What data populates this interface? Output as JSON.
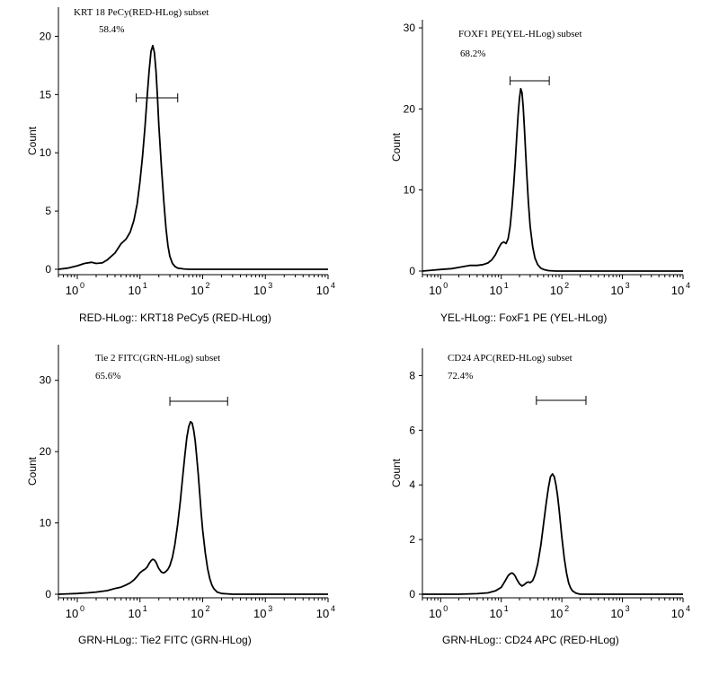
{
  "chart_data": [
    {
      "type": "line",
      "title": "KRT 18 PeCy(RED-HLog) subset",
      "gate_percent": "58.4%",
      "gate_range": [
        8.7,
        40
      ],
      "xlabel": "RED-HLog:: KRT18 PeCy5 (RED-HLog)",
      "ylabel": "Count",
      "xscale": "log",
      "xlim": [
        0.5,
        10000
      ],
      "ylim": [
        0,
        22.5
      ],
      "yticks": [
        0,
        5,
        10,
        15,
        20
      ],
      "xtick_bases": [
        "10",
        "10",
        "10",
        "10",
        "10"
      ],
      "xtick_exps": [
        "0",
        "1",
        "2",
        "3",
        "4"
      ],
      "series": [
        {
          "x": [
            0.5,
            0.7,
            1,
            1.3,
            1.7,
            2,
            2.5,
            3,
            4,
            5,
            6,
            7,
            8,
            9,
            10,
            11,
            12,
            13,
            14,
            15,
            16,
            17,
            18,
            19,
            20,
            22,
            24,
            26,
            28,
            30,
            33,
            36,
            40,
            50,
            60,
            80,
            100,
            1000,
            10000
          ],
          "y": [
            0,
            0.1,
            0.3,
            0.5,
            0.6,
            0.5,
            0.55,
            0.8,
            1.4,
            2.2,
            2.6,
            3.2,
            4.2,
            5.6,
            7.5,
            9.7,
            12.2,
            14.8,
            17.0,
            18.7,
            19.2,
            18.6,
            17.0,
            14.8,
            12.4,
            8.8,
            5.8,
            3.5,
            2.0,
            1.1,
            0.5,
            0.25,
            0.1,
            0.03,
            0,
            0,
            0,
            0,
            0
          ]
        }
      ]
    },
    {
      "type": "line",
      "title": "FOXF1 PE(YEL-HLog) subset",
      "gate_percent": "68.2%",
      "gate_range": [
        14,
        62
      ],
      "xlabel": "YEL-HLog:: FoxF1 PE (YEL-HLog)",
      "ylabel": "Count",
      "xscale": "log",
      "xlim": [
        0.5,
        10000
      ],
      "ylim": [
        0,
        31
      ],
      "yticks": [
        0,
        10,
        20,
        30
      ],
      "xtick_bases": [
        "10",
        "10",
        "10",
        "10",
        "10"
      ],
      "xtick_exps": [
        "0",
        "1",
        "2",
        "3",
        "4"
      ],
      "series": [
        {
          "x": [
            0.5,
            0.7,
            1,
            1.5,
            2,
            3,
            4,
            5,
            6,
            7,
            8,
            9,
            10,
            11,
            12,
            13,
            14,
            15,
            16,
            17,
            18,
            19,
            20,
            21,
            22,
            23,
            24,
            26,
            28,
            30,
            33,
            36,
            40,
            45,
            50,
            60,
            80,
            100,
            1000,
            10000
          ],
          "y": [
            0,
            0.1,
            0.2,
            0.3,
            0.45,
            0.7,
            0.7,
            0.8,
            1.0,
            1.4,
            2.0,
            2.8,
            3.4,
            3.6,
            3.4,
            4.0,
            5.5,
            7.8,
            10.5,
            13.5,
            16.5,
            19.3,
            21.3,
            22.5,
            22.0,
            20.3,
            17.8,
            12.8,
            8.5,
            5.5,
            3.0,
            1.6,
            0.8,
            0.35,
            0.2,
            0.05,
            0,
            0,
            0,
            0
          ]
        }
      ]
    },
    {
      "type": "line",
      "title": "Tie 2 FITC(GRN-HLog) subset",
      "gate_percent": "65.6%",
      "gate_range": [
        30,
        250
      ],
      "xlabel": "GRN-HLog:: Tie2 FITC (GRN-HLog)",
      "ylabel": "Count",
      "xscale": "log",
      "xlim": [
        0.5,
        10000
      ],
      "ylim": [
        0,
        35
      ],
      "yticks": [
        0,
        10,
        20,
        30
      ],
      "xtick_bases": [
        "10",
        "10",
        "10",
        "10",
        "10"
      ],
      "xtick_exps": [
        "0",
        "1",
        "2",
        "3",
        "4"
      ],
      "series": [
        {
          "x": [
            0.5,
            0.7,
            1,
            1.5,
            2,
            3,
            4,
            5,
            6,
            7,
            8,
            9,
            10,
            11,
            12,
            13,
            14,
            15,
            16,
            17,
            18,
            19,
            20,
            22,
            24,
            26,
            28,
            30,
            33,
            36,
            40,
            44,
            48,
            52,
            56,
            60,
            64,
            68,
            72,
            76,
            80,
            85,
            90,
            95,
            100,
            110,
            120,
            130,
            140,
            150,
            170,
            200,
            300,
            1000,
            10000
          ],
          "y": [
            0,
            0.05,
            0.1,
            0.2,
            0.3,
            0.5,
            0.8,
            1.0,
            1.3,
            1.6,
            2.0,
            2.5,
            3.0,
            3.3,
            3.5,
            3.8,
            4.3,
            4.7,
            4.9,
            4.8,
            4.5,
            4.0,
            3.6,
            3.1,
            3.0,
            3.2,
            3.5,
            4.0,
            5.2,
            7.0,
            9.8,
            13.0,
            16.5,
            19.5,
            22.0,
            23.5,
            24.2,
            24.0,
            23.0,
            21.5,
            19.5,
            16.8,
            14.0,
            11.3,
            9.0,
            5.8,
            3.6,
            2.2,
            1.3,
            0.8,
            0.3,
            0.1,
            0,
            0,
            0
          ]
        }
      ]
    },
    {
      "type": "line",
      "title": "CD24 APC(RED-HLog) subset",
      "gate_percent": "72.4%",
      "gate_range": [
        38,
        250
      ],
      "xlabel": "GRN-HLog:: CD24 APC (RED-HLog)",
      "ylabel": "Count",
      "xscale": "log",
      "xlim": [
        0.5,
        10000
      ],
      "ylim": [
        0,
        9
      ],
      "yticks": [
        0,
        2,
        4,
        6,
        8
      ],
      "xtick_bases": [
        "10",
        "10",
        "10",
        "10",
        "10"
      ],
      "xtick_exps": [
        "0",
        "1",
        "2",
        "3",
        "4"
      ],
      "series": [
        {
          "x": [
            0.5,
            1,
            2,
            4,
            6,
            8,
            10,
            11,
            12,
            13,
            14,
            15,
            16,
            17,
            18,
            20,
            22,
            24,
            26,
            28,
            30,
            33,
            36,
            40,
            45,
            50,
            55,
            60,
            65,
            70,
            75,
            80,
            85,
            90,
            95,
            100,
            110,
            120,
            130,
            140,
            150,
            170,
            200,
            300,
            1000,
            10000
          ],
          "y": [
            0,
            0,
            0,
            0.02,
            0.05,
            0.12,
            0.25,
            0.4,
            0.55,
            0.68,
            0.75,
            0.78,
            0.74,
            0.66,
            0.55,
            0.38,
            0.3,
            0.35,
            0.42,
            0.45,
            0.42,
            0.5,
            0.7,
            1.1,
            1.8,
            2.6,
            3.3,
            3.9,
            4.3,
            4.4,
            4.3,
            4.0,
            3.6,
            3.1,
            2.6,
            2.1,
            1.3,
            0.75,
            0.4,
            0.22,
            0.12,
            0.04,
            0,
            0,
            0,
            0
          ]
        }
      ]
    }
  ]
}
